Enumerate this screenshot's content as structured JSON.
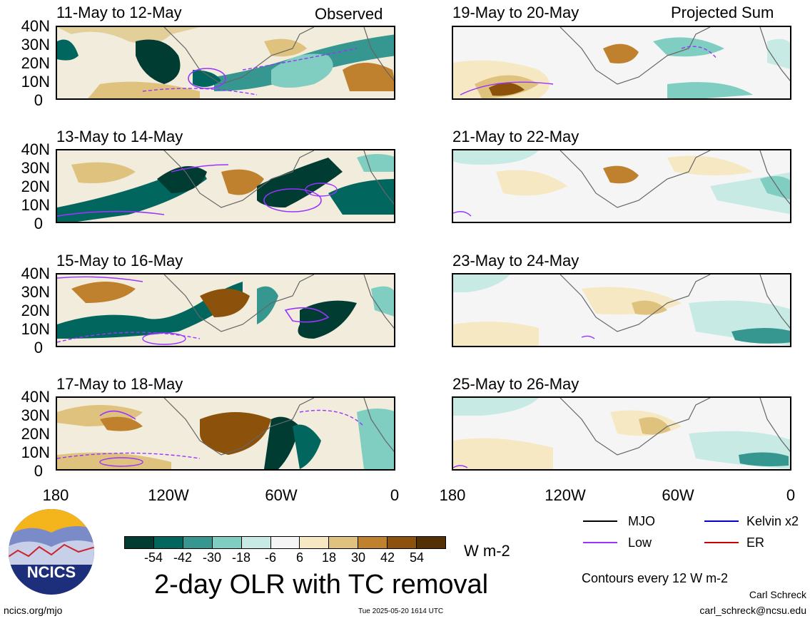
{
  "header": {
    "observed_label": "Observed",
    "projected_label": "Projected Sum"
  },
  "panels_left": [
    {
      "title": "11-May to 12-May"
    },
    {
      "title": "13-May to 14-May"
    },
    {
      "title": "15-May to 16-May"
    },
    {
      "title": "17-May to 18-May"
    }
  ],
  "panels_right": [
    {
      "title": "19-May to 20-May"
    },
    {
      "title": "21-May to 22-May"
    },
    {
      "title": "23-May to 24-May"
    },
    {
      "title": "25-May to 26-May"
    }
  ],
  "axes": {
    "lat_labels": [
      "40N",
      "30N",
      "20N",
      "10N",
      "0"
    ],
    "lon_labels": [
      "180",
      "120W",
      "60W",
      "0"
    ]
  },
  "colorbar": {
    "tick_labels": [
      "-54",
      "-42",
      "-30",
      "-18",
      "-6",
      "6",
      "18",
      "30",
      "42",
      "54"
    ],
    "colors": [
      "#013c32",
      "#01665e",
      "#35978f",
      "#80cdc1",
      "#c7eae5",
      "#f5f5f5",
      "#f6e8c3",
      "#dfc27d",
      "#bf812d",
      "#8c510a",
      "#543005"
    ],
    "unit": "W m-2"
  },
  "legend": {
    "items": [
      {
        "label": "MJO",
        "color": "#000000"
      },
      {
        "label": "Kelvin x2",
        "color": "#0000cc"
      },
      {
        "label": "Low",
        "color": "#9933ff"
      },
      {
        "label": "ER",
        "color": "#cc0000"
      }
    ],
    "contour_note": "Contours every 12 W m-2"
  },
  "footer": {
    "main_title": "2-day OLR with TC removal",
    "logo_text": "NCICS",
    "website": "ncics.org/mjo",
    "timestamp": "Tue 2025-05-20 1614 UTC",
    "author": "Carl Schreck",
    "email": "carl_schreck@ncsu.edu"
  }
}
